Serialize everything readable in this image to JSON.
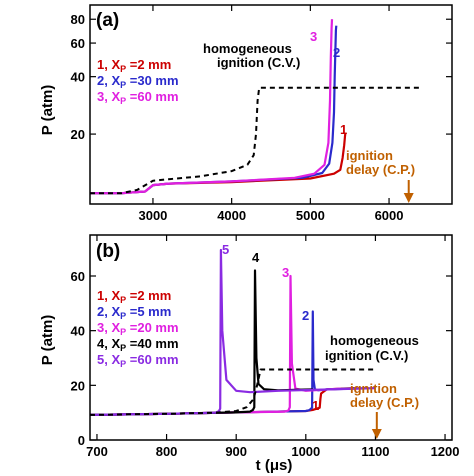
{
  "chart_data": [
    {
      "type": "line",
      "panel_label": "(a)",
      "ylabel": "P (atm)",
      "xlabel": "",
      "yscale": "log",
      "xlim": [
        2200,
        6800
      ],
      "ylim": [
        8.6,
        95
      ],
      "xticks": [
        3000,
        4000,
        5000,
        6000
      ],
      "yticks": [
        20,
        40,
        60,
        80
      ],
      "legend": [
        "1, X_P =2 mm",
        "2, X_P =30 mm",
        "3, X_P =60 mm"
      ],
      "annotations": {
        "homogeneous": [
          "homogeneous",
          "ignition (C.V.)"
        ],
        "delay": [
          "ignition",
          "delay (C.P.)"
        ]
      },
      "series": [
        {
          "name": "1",
          "color": "#cc0000",
          "dash": false,
          "x": [
            2200,
            2600,
            2900,
            3000,
            3200,
            4000,
            5000,
            5300,
            5380,
            5410,
            5430,
            5440,
            5445
          ],
          "y": [
            9.8,
            9.8,
            10.0,
            10.8,
            11.0,
            11.2,
            11.7,
            12.4,
            13.0,
            15.0,
            17.5,
            19.5,
            20.3
          ]
        },
        {
          "name": "2",
          "color": "#2a2acc",
          "dash": false,
          "x": [
            2200,
            2600,
            2900,
            3000,
            3200,
            4000,
            4900,
            5150,
            5240,
            5280,
            5300,
            5310,
            5320,
            5325,
            5330
          ],
          "y": [
            9.8,
            9.8,
            10.0,
            10.8,
            11.0,
            11.3,
            11.8,
            12.5,
            14.0,
            18.0,
            26.0,
            40.0,
            58.0,
            70.0,
            74.0
          ]
        },
        {
          "name": "3",
          "color": "#e020e0",
          "dash": false,
          "x": [
            2200,
            2600,
            2900,
            3000,
            3200,
            4000,
            4800,
            5050,
            5180,
            5230,
            5250,
            5260,
            5270,
            5275
          ],
          "y": [
            9.8,
            9.8,
            10.0,
            10.8,
            11.0,
            11.3,
            11.8,
            12.4,
            13.8,
            18.0,
            30.0,
            50.0,
            72.0,
            80.0
          ]
        },
        {
          "name": "homogeneous ignition (C.V.)",
          "color": "#000000",
          "dash": true,
          "x": [
            2200,
            2600,
            2800,
            3000,
            3200,
            3600,
            4000,
            4200,
            4280,
            4310,
            4330,
            4350,
            5200,
            6400
          ],
          "y": [
            9.8,
            9.8,
            10.2,
            11.4,
            11.6,
            12.0,
            12.8,
            13.8,
            15.5,
            20.0,
            30.0,
            35.0,
            35.0,
            35.0
          ]
        }
      ],
      "markers": [
        {
          "type": "arrow",
          "x": 6250,
          "color": "#c06000"
        }
      ]
    },
    {
      "type": "line",
      "panel_label": "(b)",
      "ylabel": "P (atm)",
      "xlabel": "t (μs)",
      "xlim": [
        690,
        1210
      ],
      "ylim": [
        0,
        75
      ],
      "xticks": [
        700,
        800,
        900,
        1000,
        1100,
        1200
      ],
      "yticks": [
        0,
        20,
        40,
        60
      ],
      "legend": [
        "1, X_P =2 mm",
        "2, X_P =5 mm",
        "3, X_P =20 mm",
        "4, X_P =40 mm",
        "5, X_P =60 mm"
      ],
      "annotations": {
        "homogeneous": [
          "homogeneous",
          "ignition (C.V.)"
        ],
        "delay": [
          "ignition",
          "delay (C.P.)"
        ]
      },
      "series": [
        {
          "name": "1",
          "color": "#cc0000",
          "dash": false,
          "x": [
            690,
            800,
            900,
            1000,
            1010,
            1020,
            1021,
            1022,
            1030,
            1070
          ],
          "y": [
            9.2,
            9.6,
            10.1,
            10.6,
            11.0,
            11.8,
            15.0,
            17.0,
            18.5,
            19.0
          ]
        },
        {
          "name": "2",
          "color": "#2a2acc",
          "dash": false,
          "x": [
            690,
            800,
            900,
            1000,
            1005,
            1009,
            1010,
            1011,
            1013,
            1018,
            1030,
            1090
          ],
          "y": [
            9.2,
            9.6,
            10.1,
            10.6,
            10.9,
            11.8,
            47.0,
            22.0,
            18.5,
            18.2,
            18.5,
            19.0
          ]
        },
        {
          "name": "3",
          "color": "#e020e0",
          "dash": false,
          "x": [
            690,
            800,
            900,
            970,
            975,
            977,
            978,
            980,
            985,
            1000,
            1050
          ],
          "y": [
            9.2,
            9.6,
            10.1,
            10.4,
            10.8,
            12.0,
            60.0,
            28.0,
            18.8,
            18.0,
            18.8
          ]
        },
        {
          "name": "4",
          "color": "#000000",
          "dash": false,
          "x": [
            690,
            800,
            900,
            920,
            924,
            926,
            927,
            929,
            932,
            940,
            960,
            1010
          ],
          "y": [
            9.2,
            9.6,
            10.1,
            10.4,
            11.0,
            12.0,
            62.0,
            30.0,
            20.5,
            18.6,
            18.2,
            18.5
          ]
        },
        {
          "name": "5",
          "color": "#8a2be2",
          "dash": false,
          "x": [
            690,
            800,
            870,
            875,
            877,
            878,
            880,
            886,
            900,
            920,
            960,
            1100
          ],
          "y": [
            9.2,
            9.6,
            10.0,
            10.5,
            11.5,
            69.5,
            40.0,
            22.0,
            18.0,
            17.5,
            18.0,
            19.0
          ]
        },
        {
          "name": "homogeneous ignition (C.V.)",
          "color": "#000000",
          "dash": true,
          "x": [
            690,
            800,
            870,
            900,
            915,
            925,
            930,
            935,
            1000,
            1100
          ],
          "y": [
            9.2,
            9.6,
            10.0,
            10.6,
            12.0,
            15.0,
            20.0,
            25.8,
            25.8,
            25.8
          ]
        }
      ],
      "markers": [
        {
          "type": "arrow",
          "x": 1102,
          "color": "#c06000"
        }
      ]
    }
  ]
}
